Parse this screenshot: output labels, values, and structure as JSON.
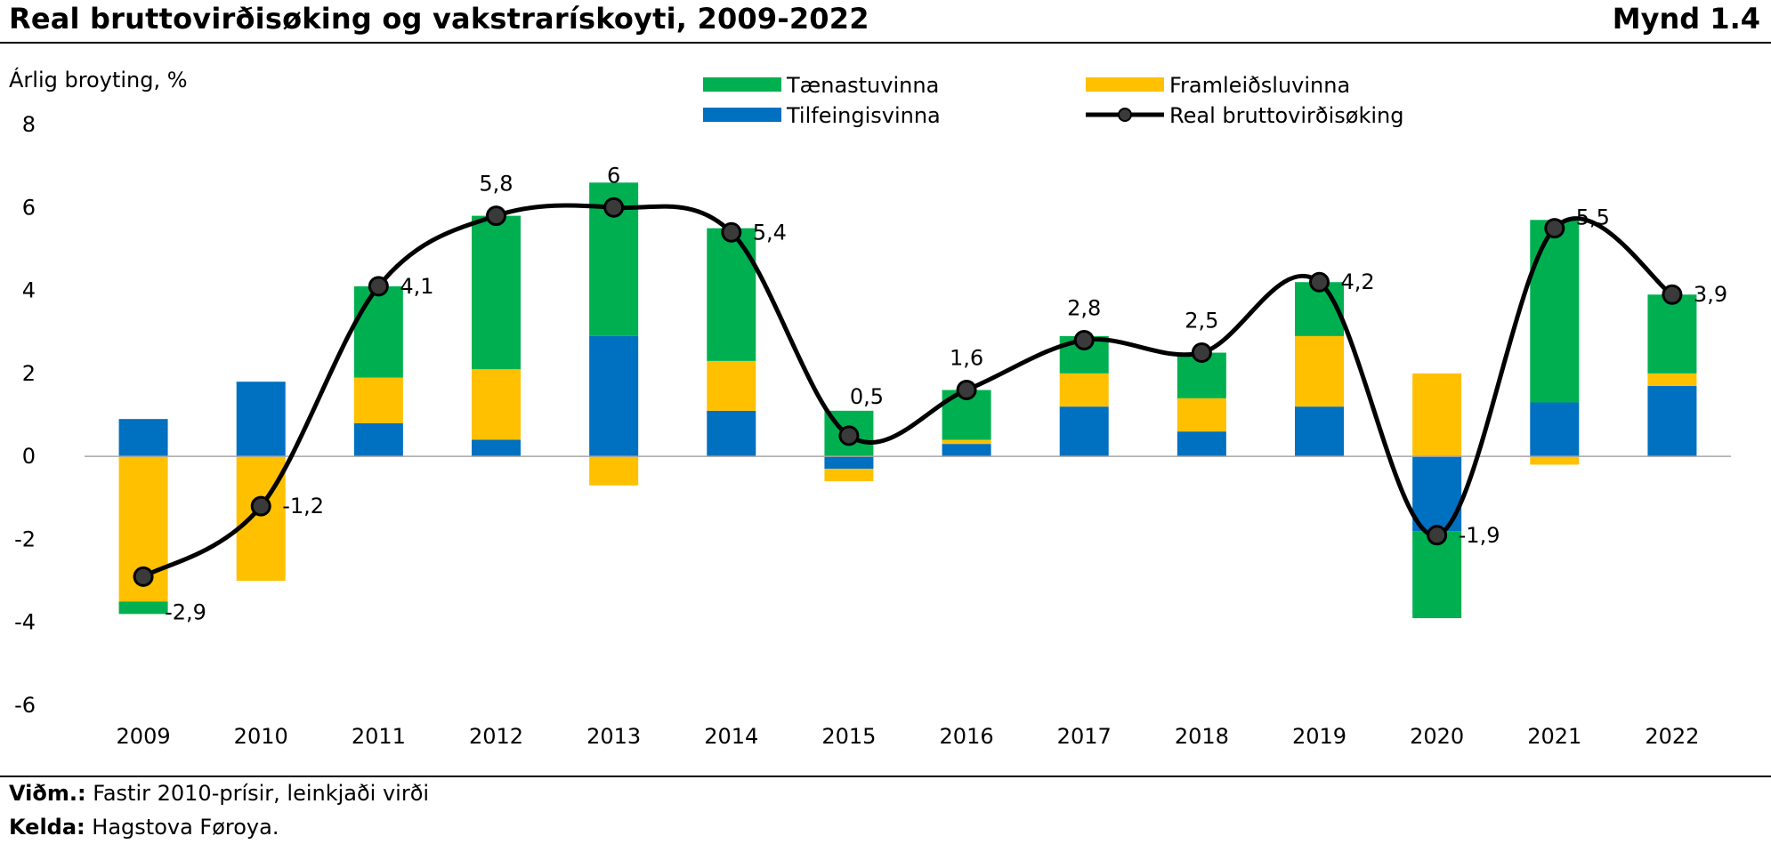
{
  "header": {
    "title": "Real bruttovirðisøking og vakstrarískoyti, 2009-2022",
    "figure_number": "Mynd 1.4"
  },
  "footer": {
    "note_label": "Viðm.:",
    "note_text": " Fastir 2010-prísir, leinkjaði virði",
    "source_label": "Kelda:",
    "source_text": " Hagstova Føroya."
  },
  "chart_data": {
    "type": "bar",
    "subtype": "stacked-bar-with-line",
    "title": "Real bruttovirðisøking og vakstrarískoyti, 2009-2022",
    "ylabel": "Árlig broyting, %",
    "xlabel": "",
    "ylim": [
      -6,
      8
    ],
    "yticks": [
      8,
      6,
      4,
      2,
      0,
      -2,
      -4,
      -6
    ],
    "grid": false,
    "legend_position": "top",
    "categories": [
      "2009",
      "2010",
      "2011",
      "2012",
      "2013",
      "2014",
      "2015",
      "2016",
      "2017",
      "2018",
      "2019",
      "2020",
      "2021",
      "2022"
    ],
    "series": [
      {
        "name": "Tilfeingisvinna",
        "type": "bar",
        "color": "#0070C0",
        "values": [
          0.9,
          1.8,
          0.8,
          0.4,
          2.9,
          1.1,
          -0.3,
          0.3,
          1.2,
          0.6,
          1.2,
          -1.8,
          1.3,
          1.7
        ]
      },
      {
        "name": "Framleiðsluvinna",
        "type": "bar",
        "color": "#FFC000",
        "values": [
          -3.5,
          -3.0,
          1.1,
          1.7,
          -0.7,
          1.2,
          -0.3,
          0.1,
          0.8,
          0.8,
          1.7,
          2.0,
          -0.2,
          0.3
        ]
      },
      {
        "name": "Tænastuvinna",
        "type": "bar",
        "color": "#00B050",
        "values": [
          -0.3,
          0.0,
          2.2,
          3.7,
          3.7,
          3.2,
          1.1,
          1.2,
          0.9,
          1.1,
          1.3,
          -2.1,
          4.4,
          1.9
        ]
      },
      {
        "name": "Real bruttovirðisøking",
        "type": "line",
        "color": "#000000",
        "values": [
          -2.9,
          -1.2,
          4.1,
          5.8,
          6.0,
          5.4,
          0.5,
          1.6,
          2.8,
          2.5,
          4.2,
          -1.9,
          5.5,
          3.9
        ],
        "labels": [
          "-2,9",
          "-1,2",
          "4,1",
          "5,8",
          "6",
          "5,4",
          "0,5",
          "1,6",
          "2,8",
          "2,5",
          "4,2",
          "-1,9",
          "5,5",
          "3,9"
        ]
      }
    ],
    "legend": [
      {
        "name": "Tænastuvinna",
        "kind": "bar",
        "color": "#00B050"
      },
      {
        "name": "Framleiðsluvinna",
        "kind": "bar",
        "color": "#FFC000"
      },
      {
        "name": "Tilfeingisvinna",
        "kind": "bar",
        "color": "#0070C0"
      },
      {
        "name": "Real bruttovirðisøking",
        "kind": "line",
        "color": "#000000"
      }
    ]
  }
}
